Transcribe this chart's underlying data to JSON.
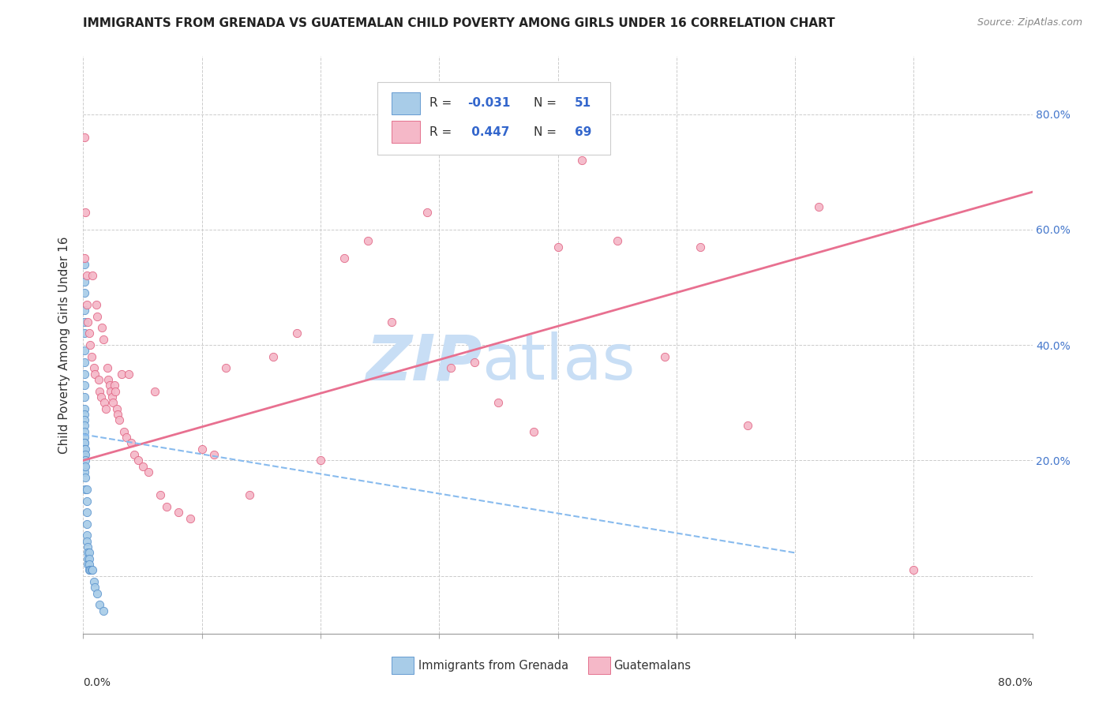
{
  "title": "IMMIGRANTS FROM GRENADA VS GUATEMALAN CHILD POVERTY AMONG GIRLS UNDER 16 CORRELATION CHART",
  "source": "Source: ZipAtlas.com",
  "ylabel": "Child Poverty Among Girls Under 16",
  "xlim": [
    0.0,
    0.8
  ],
  "ylim": [
    -0.1,
    0.9
  ],
  "xtick_vals": [
    0.0,
    0.1,
    0.2,
    0.3,
    0.4,
    0.5,
    0.6,
    0.7,
    0.8
  ],
  "xtick_labels": [
    "0.0%",
    "",
    "",
    "",
    "",
    "",
    "",
    "",
    "80.0%"
  ],
  "ytick_right_vals": [
    0.2,
    0.4,
    0.6,
    0.8
  ],
  "ytick_right_labels": [
    "20.0%",
    "40.0%",
    "60.0%",
    "80.0%"
  ],
  "color_blue_fill": "#a8cce8",
  "color_blue_edge": "#5590cc",
  "color_pink_fill": "#f5b8c8",
  "color_pink_edge": "#e06080",
  "line_blue_color": "#88bbee",
  "line_pink_color": "#e87090",
  "watermark_color": "#c8def5",
  "grid_color": "#cccccc",
  "background_color": "#ffffff",
  "blue_scatter_x": [
    0.001,
    0.001,
    0.001,
    0.001,
    0.001,
    0.001,
    0.001,
    0.001,
    0.001,
    0.001,
    0.001,
    0.001,
    0.001,
    0.001,
    0.001,
    0.001,
    0.001,
    0.001,
    0.001,
    0.001,
    0.001,
    0.001,
    0.001,
    0.002,
    0.002,
    0.002,
    0.002,
    0.002,
    0.002,
    0.003,
    0.003,
    0.003,
    0.003,
    0.003,
    0.003,
    0.004,
    0.004,
    0.004,
    0.004,
    0.005,
    0.005,
    0.005,
    0.005,
    0.006,
    0.007,
    0.008,
    0.009,
    0.01,
    0.012,
    0.014,
    0.017
  ],
  "blue_scatter_y": [
    0.54,
    0.51,
    0.49,
    0.46,
    0.44,
    0.42,
    0.39,
    0.37,
    0.35,
    0.33,
    0.31,
    0.29,
    0.28,
    0.27,
    0.26,
    0.25,
    0.24,
    0.23,
    0.23,
    0.22,
    0.21,
    0.19,
    0.18,
    0.22,
    0.21,
    0.2,
    0.19,
    0.17,
    0.15,
    0.15,
    0.13,
    0.11,
    0.09,
    0.07,
    0.06,
    0.05,
    0.04,
    0.03,
    0.02,
    0.04,
    0.03,
    0.02,
    0.01,
    0.01,
    0.01,
    0.01,
    -0.01,
    -0.02,
    -0.03,
    -0.05,
    -0.06
  ],
  "pink_scatter_x": [
    0.001,
    0.001,
    0.002,
    0.003,
    0.003,
    0.004,
    0.005,
    0.006,
    0.007,
    0.008,
    0.009,
    0.01,
    0.011,
    0.012,
    0.013,
    0.014,
    0.015,
    0.016,
    0.017,
    0.018,
    0.019,
    0.02,
    0.021,
    0.022,
    0.023,
    0.024,
    0.025,
    0.026,
    0.027,
    0.028,
    0.029,
    0.03,
    0.032,
    0.034,
    0.036,
    0.038,
    0.04,
    0.043,
    0.046,
    0.05,
    0.055,
    0.06,
    0.065,
    0.07,
    0.08,
    0.09,
    0.1,
    0.11,
    0.12,
    0.14,
    0.16,
    0.18,
    0.2,
    0.22,
    0.24,
    0.26,
    0.29,
    0.31,
    0.33,
    0.35,
    0.38,
    0.4,
    0.42,
    0.45,
    0.49,
    0.52,
    0.56,
    0.62,
    0.7
  ],
  "pink_scatter_y": [
    0.76,
    0.55,
    0.63,
    0.52,
    0.47,
    0.44,
    0.42,
    0.4,
    0.38,
    0.52,
    0.36,
    0.35,
    0.47,
    0.45,
    0.34,
    0.32,
    0.31,
    0.43,
    0.41,
    0.3,
    0.29,
    0.36,
    0.34,
    0.33,
    0.32,
    0.31,
    0.3,
    0.33,
    0.32,
    0.29,
    0.28,
    0.27,
    0.35,
    0.25,
    0.24,
    0.35,
    0.23,
    0.21,
    0.2,
    0.19,
    0.18,
    0.32,
    0.14,
    0.12,
    0.11,
    0.1,
    0.22,
    0.21,
    0.36,
    0.14,
    0.38,
    0.42,
    0.2,
    0.55,
    0.58,
    0.44,
    0.63,
    0.36,
    0.37,
    0.3,
    0.25,
    0.57,
    0.72,
    0.58,
    0.38,
    0.57,
    0.26,
    0.64,
    0.01
  ],
  "pink_line_x0": 0.0,
  "pink_line_x1": 0.8,
  "pink_line_y0": 0.2,
  "pink_line_y1": 0.665,
  "blue_line_x0": 0.0,
  "blue_line_x1": 0.6,
  "blue_line_y0": 0.245,
  "blue_line_y1": 0.04
}
